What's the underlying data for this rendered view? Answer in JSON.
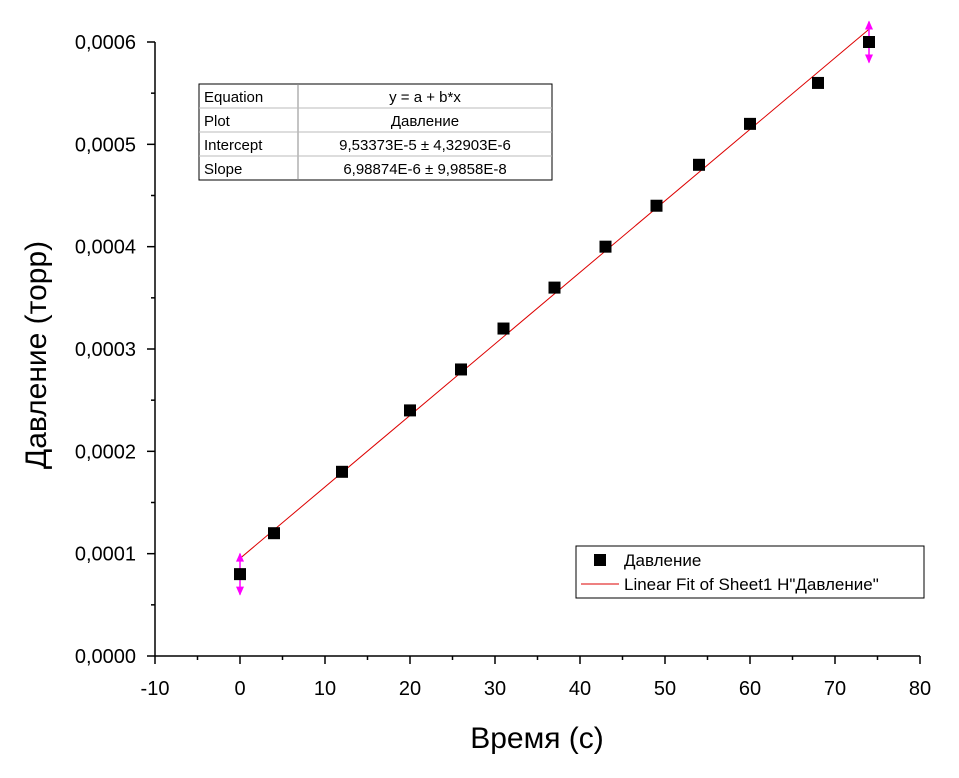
{
  "chart_data": {
    "type": "scatter",
    "xlabel": "Время (с)",
    "ylabel": "Давление (торр)",
    "xlim": [
      -10,
      80
    ],
    "ylim": [
      0,
      0.0006
    ],
    "x_ticks": [
      -10,
      0,
      10,
      20,
      30,
      40,
      50,
      60,
      70,
      80
    ],
    "x_tick_labels": [
      "-10",
      "0",
      "10",
      "20",
      "30",
      "40",
      "50",
      "60",
      "70",
      "80"
    ],
    "y_ticks": [
      0,
      0.0001,
      0.0002,
      0.0003,
      0.0004,
      0.0005,
      0.0006
    ],
    "y_tick_labels": [
      "0,0000",
      "0,0001",
      "0,0002",
      "0,0003",
      "0,0004",
      "0,0005",
      "0,0006"
    ],
    "grid": false,
    "series": [
      {
        "name": "Давление",
        "marker": "square",
        "color": "#000000",
        "x": [
          0,
          4,
          12,
          20,
          26,
          31,
          37,
          43,
          49,
          54,
          60,
          68,
          74
        ],
        "y": [
          8e-05,
          0.00012,
          0.00018,
          0.00024,
          0.00028,
          0.00032,
          0.00036,
          0.0004,
          0.00044,
          0.00048,
          0.00052,
          0.00056,
          0.0006
        ]
      }
    ],
    "error_bars": {
      "color": "#ff00ff",
      "points": [
        {
          "x": 0,
          "y": 8e-05,
          "err": 2e-05
        },
        {
          "x": 74,
          "y": 0.0006,
          "err": 2e-05
        }
      ]
    },
    "fit": {
      "name": "Linear Fit of Sheet1 H\"Давление\"",
      "color": "#dd0000",
      "intercept": 9.53373e-05,
      "slope": 6.98874e-06,
      "x_range": [
        0,
        74
      ]
    },
    "fit_table": {
      "rows": [
        [
          "Equation",
          "y = a + b*x"
        ],
        [
          "Plot",
          "Давление"
        ],
        [
          "Intercept",
          "9,53373E-5 ± 4,32903E-6"
        ],
        [
          "Slope",
          "6,98874E-6 ± 9,9858E-8"
        ]
      ]
    },
    "legend": {
      "placement": "bottom-right",
      "entries": [
        "Давление",
        "Linear Fit of Sheet1 H\"Давление\""
      ]
    }
  }
}
